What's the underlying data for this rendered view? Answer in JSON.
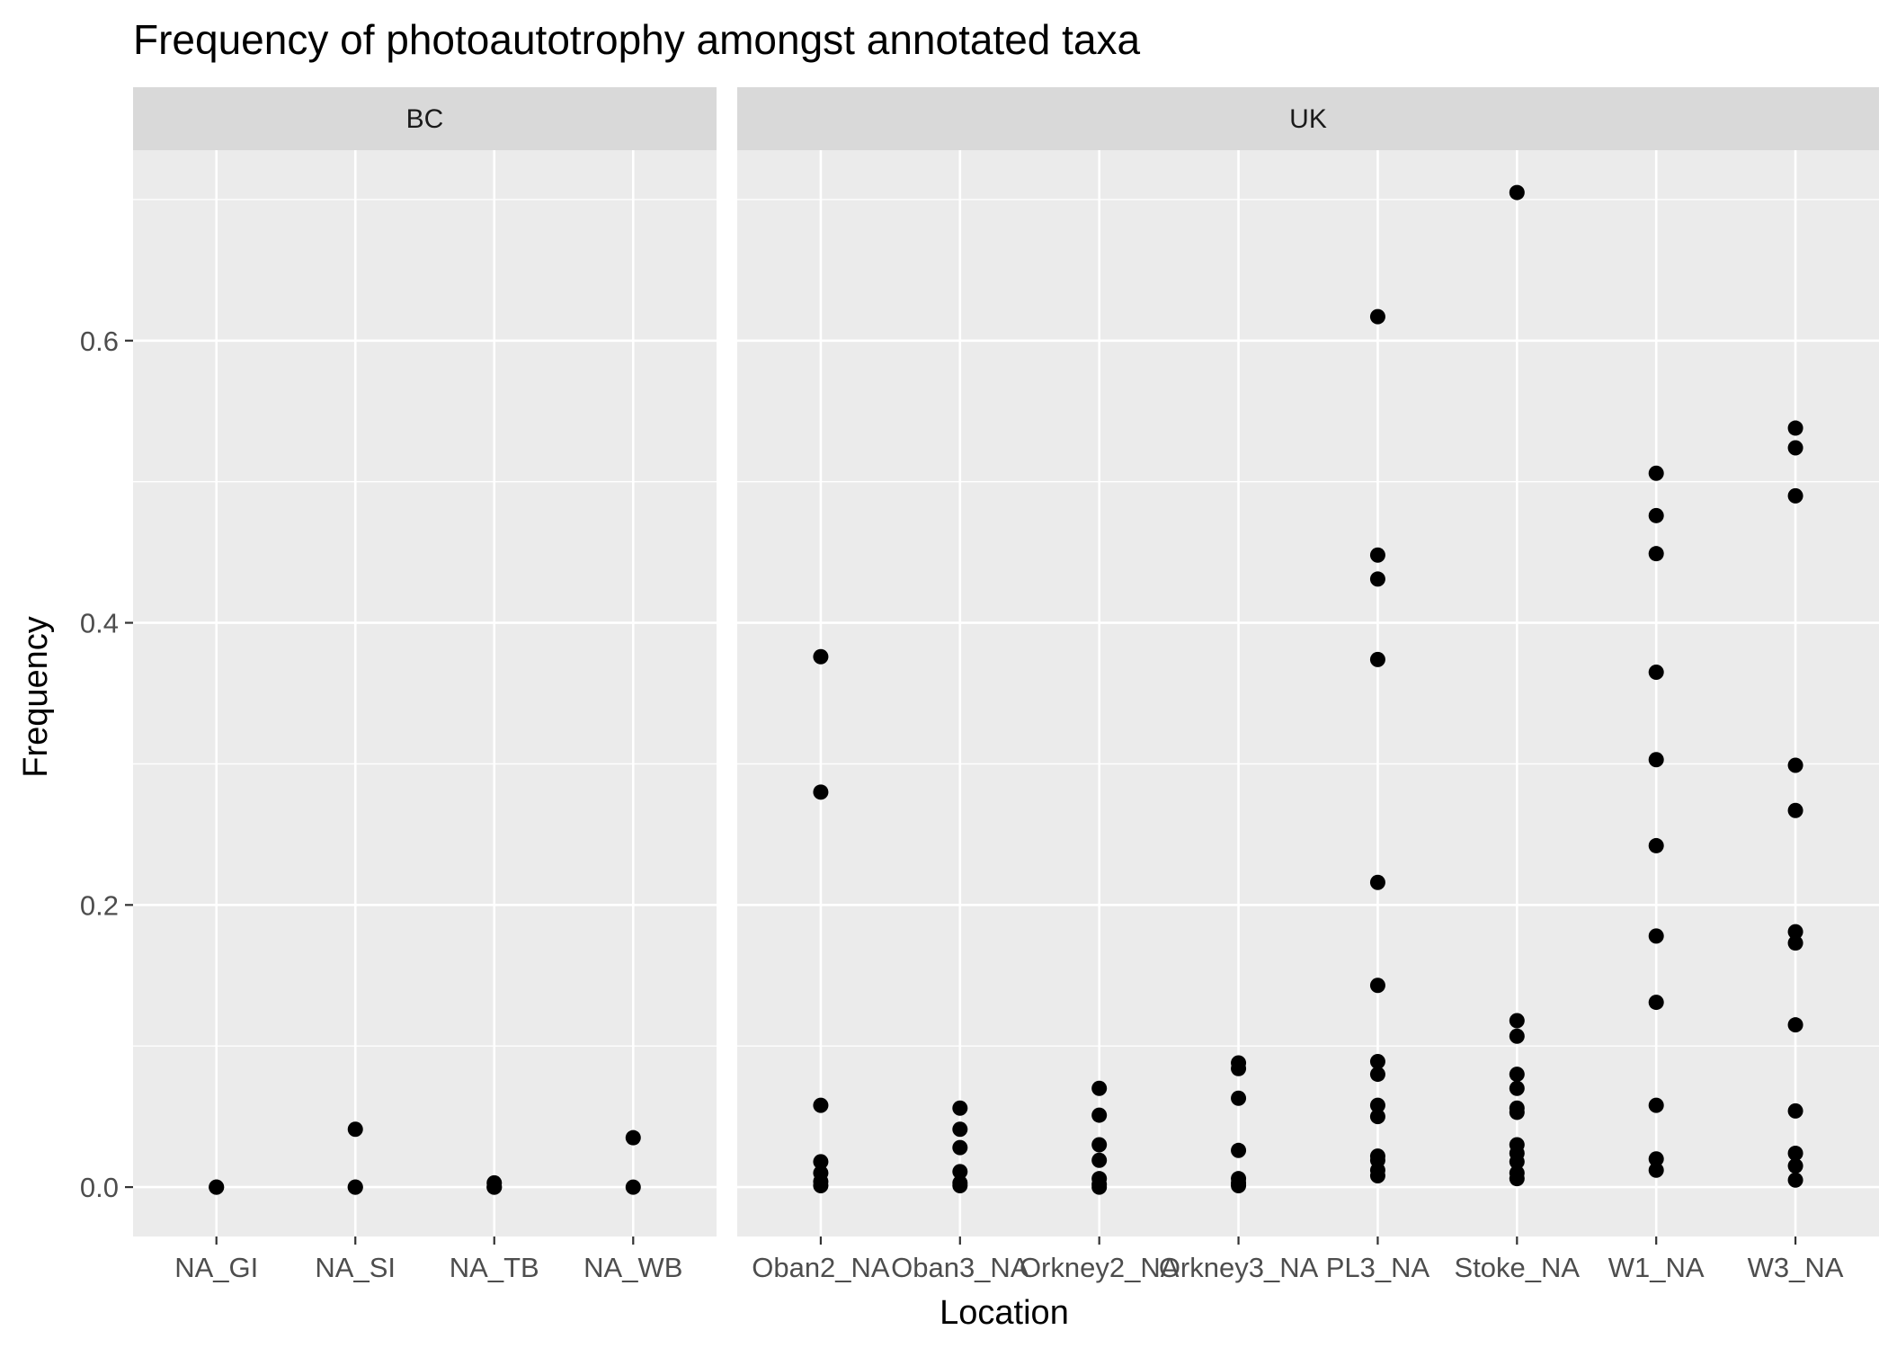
{
  "chart_data": {
    "type": "scatter",
    "title": "Frequency of photoautotrophy amongst annotated taxa",
    "xlabel": "Location",
    "ylabel": "Frequency",
    "ylim": [
      -0.035,
      0.735
    ],
    "yticks": [
      0.0,
      0.2,
      0.4,
      0.6
    ],
    "ytick_labels": [
      "0.0",
      "0.2",
      "0.4",
      "0.6"
    ],
    "grid": true,
    "panels": [
      {
        "name": "BC",
        "categories": [
          "NA_GI",
          "NA_SI",
          "NA_TB",
          "NA_WB"
        ],
        "points": {
          "NA_GI": [
            0.0,
            0.0
          ],
          "NA_SI": [
            0.041,
            0.0,
            0.0
          ],
          "NA_TB": [
            0.003,
            0.0,
            0.0
          ],
          "NA_WB": [
            0.035,
            0.0
          ]
        }
      },
      {
        "name": "UK",
        "categories": [
          "Oban2_NA",
          "Oban3_NA",
          "Orkney2_NA",
          "Orkney3_NA",
          "PL3_NA",
          "Stoke_NA",
          "W1_NA",
          "W3_NA"
        ],
        "points": {
          "Oban2_NA": [
            0.376,
            0.28,
            0.058,
            0.018,
            0.01,
            0.004,
            0.001
          ],
          "Oban3_NA": [
            0.056,
            0.041,
            0.028,
            0.011,
            0.003,
            0.001
          ],
          "Orkney2_NA": [
            0.07,
            0.051,
            0.03,
            0.019,
            0.006,
            0.002,
            0.0
          ],
          "Orkney3_NA": [
            0.088,
            0.084,
            0.063,
            0.026,
            0.006,
            0.003,
            0.001
          ],
          "PL3_NA": [
            0.617,
            0.448,
            0.431,
            0.374,
            0.216,
            0.143,
            0.089,
            0.08,
            0.058,
            0.05,
            0.022,
            0.019,
            0.012,
            0.008
          ],
          "Stoke_NA": [
            0.705,
            0.118,
            0.107,
            0.08,
            0.07,
            0.056,
            0.053,
            0.03,
            0.024,
            0.018,
            0.01,
            0.006
          ],
          "W1_NA": [
            0.506,
            0.476,
            0.449,
            0.365,
            0.303,
            0.242,
            0.178,
            0.131,
            0.058,
            0.02,
            0.012
          ],
          "W3_NA": [
            0.538,
            0.524,
            0.49,
            0.299,
            0.267,
            0.181,
            0.173,
            0.115,
            0.054,
            0.024,
            0.015,
            0.005
          ]
        }
      }
    ]
  }
}
